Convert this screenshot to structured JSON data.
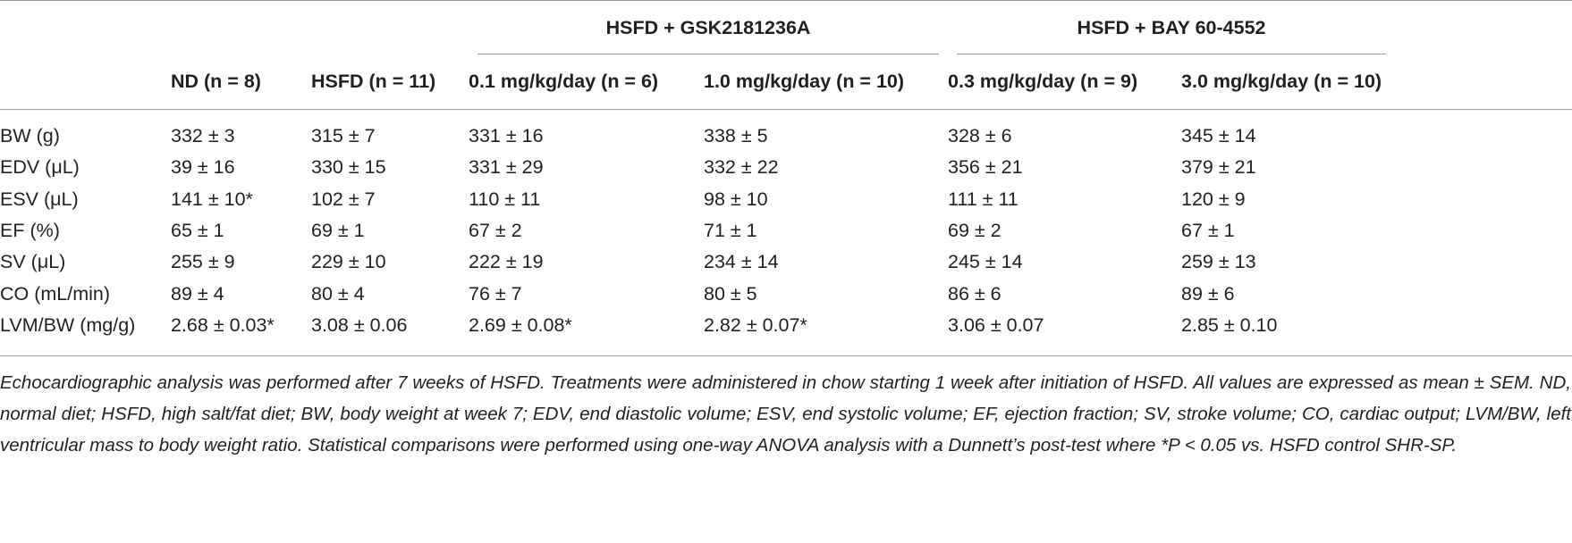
{
  "table": {
    "group_headers": [
      "HSFD + GSK2181236A",
      "HSFD + BAY 60-4552"
    ],
    "columns": [
      "ND (n = 8)",
      "HSFD (n = 11)",
      "0.1 mg/kg/day (n = 6)",
      "1.0 mg/kg/day (n = 10)",
      "0.3 mg/kg/day (n = 9)",
      "3.0 mg/kg/day (n = 10)"
    ],
    "rows": [
      [
        "BW (g)",
        "332 ± 3",
        "315 ± 7",
        "331 ± 16",
        "338 ± 5",
        "328 ± 6",
        "345 ± 14"
      ],
      [
        "EDV (μL)",
        "39 ± 16",
        "330 ± 15",
        "331 ± 29",
        "332 ± 22",
        "356 ± 21",
        "379 ± 21"
      ],
      [
        "ESV (μL)",
        "141 ± 10*",
        "102 ± 7",
        "110 ± 11",
        "98 ± 10",
        "111 ± 11",
        "120 ± 9"
      ],
      [
        "EF (%)",
        "65 ± 1",
        "69 ± 1",
        "67 ± 2",
        "71 ± 1",
        "69 ± 2",
        "67 ± 1"
      ],
      [
        "SV (μL)",
        "255 ± 9",
        "229 ± 10",
        "222 ± 19",
        "234 ± 14",
        "245 ± 14",
        "259 ± 13"
      ],
      [
        "CO (mL/min)",
        "89 ± 4",
        "80 ± 4",
        "76 ± 7",
        "80 ± 5",
        "86 ± 6",
        "89 ± 6"
      ],
      [
        "LVM/BW (mg/g)",
        "2.68 ± 0.03*",
        "3.08 ± 0.06",
        "2.69 ± 0.08*",
        "2.82 ± 0.07*",
        "3.06 ± 0.07",
        "2.85 ± 0.10"
      ]
    ]
  },
  "footnote": "Echocardiographic analysis was performed after 7 weeks of HSFD. Treatments were administered in chow starting 1 week after initiation of HSFD. All values are expressed as mean ± SEM. ND, normal diet; HSFD, high salt/fat diet; BW, body weight at week 7; EDV, end diastolic volume; ESV, end systolic volume; EF, ejection fraction; SV, stroke volume; CO, cardiac output; LVM/BW, left ventricular mass to body weight ratio. Statistical comparisons were performed using one-way ANOVA analysis with a Dunnett’s post-test where *P < 0.05 vs. HSFD control SHR-SP."
}
